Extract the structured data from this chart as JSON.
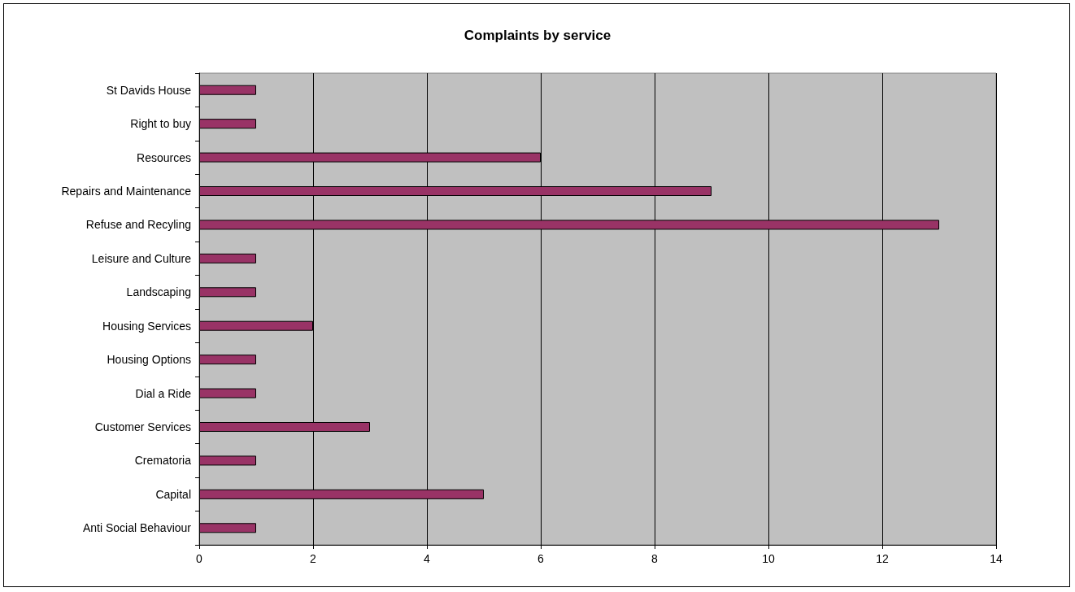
{
  "chart_data": {
    "type": "bar",
    "orientation": "horizontal",
    "title": "Complaints by service",
    "categories": [
      "St Davids House",
      "Right to buy",
      "Resources",
      "Repairs and Maintenance",
      "Refuse and Recyling",
      "Leisure and Culture",
      "Landscaping",
      "Housing Services",
      "Housing Options",
      "Dial a Ride",
      "Customer Services",
      "Crematoria",
      "Capital",
      "Anti Social Behaviour"
    ],
    "values": [
      1,
      1,
      6,
      9,
      13,
      1,
      1,
      2,
      1,
      1,
      3,
      1,
      5,
      1
    ],
    "color": "#993366",
    "xlim": [
      0,
      14
    ],
    "xticks": [
      0,
      2,
      4,
      6,
      8,
      10,
      12,
      14
    ],
    "grid": "x"
  }
}
